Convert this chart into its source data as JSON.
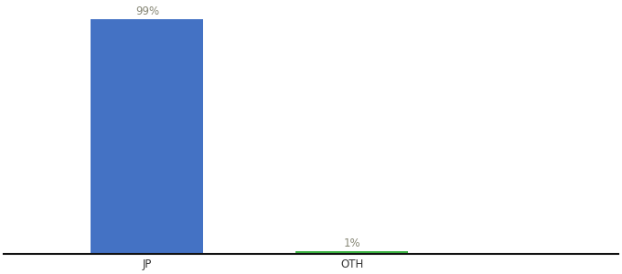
{
  "categories": [
    "JP",
    "OTH"
  ],
  "values": [
    99,
    1
  ],
  "bar_colors": [
    "#4472c4",
    "#3cb544"
  ],
  "label_color": "#888877",
  "value_labels": [
    "99%",
    "1%"
  ],
  "ylim": [
    0,
    105
  ],
  "background_color": "#ffffff",
  "bar_width": 0.55,
  "label_fontsize": 8.5,
  "tick_fontsize": 8.5
}
